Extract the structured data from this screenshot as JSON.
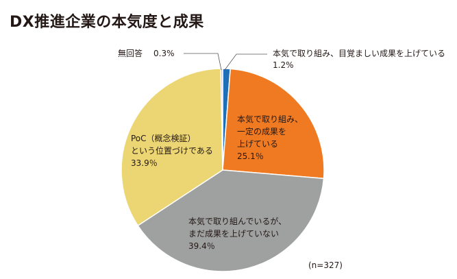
{
  "title": "DX推進企業の本気度と成果",
  "chart_data": {
    "type": "pie",
    "sample_note": "(n=327)",
    "unit": "%",
    "slices": [
      {
        "label_lines": [
          "本気で取り組み、目覚ましい成果を上げている"
        ],
        "value": 1.2,
        "value_text": "1.2%",
        "color": "#1f6fb8"
      },
      {
        "label_lines": [
          "本気で取り組み、",
          "一定の成果を",
          "上げている"
        ],
        "value": 25.1,
        "value_text": "25.1％",
        "color": "#f07a22"
      },
      {
        "label_lines": [
          "本気で取り組んでいるが、",
          "まだ成果を上げていない"
        ],
        "value": 39.4,
        "value_text": "39.4％",
        "color": "#9fa0a0"
      },
      {
        "label_lines": [
          "PoC（概念検証）",
          "という位置づけである"
        ],
        "value": 33.9,
        "value_text": "33.9％",
        "color": "#ecd674"
      },
      {
        "label_lines": [
          "無回答"
        ],
        "value": 0.3,
        "value_text": "0.3%",
        "color": "#d6b3c9"
      }
    ]
  }
}
